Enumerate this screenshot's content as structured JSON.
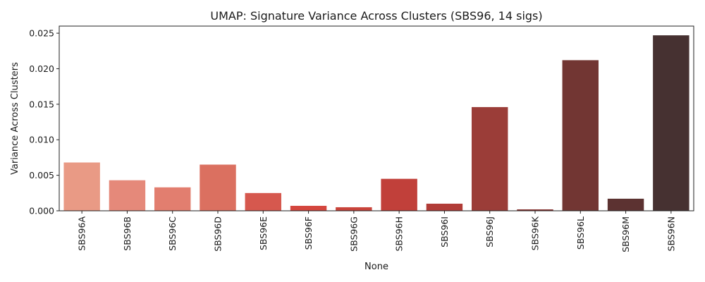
{
  "chart_data": {
    "type": "bar",
    "title": "UMAP: Signature Variance Across Clusters (SBS96, 14 sigs)",
    "xlabel": "None",
    "ylabel": "Variance Across Clusters",
    "ylim": [
      0,
      0.026
    ],
    "yticks": [
      "0.000",
      "0.005",
      "0.010",
      "0.015",
      "0.020",
      "0.025"
    ],
    "grid": false,
    "legend": "none",
    "categories": [
      "SBS96A",
      "SBS96B",
      "SBS96C",
      "SBS96D",
      "SBS96E",
      "SBS96F",
      "SBS96G",
      "SBS96H",
      "SBS96I",
      "SBS96J",
      "SBS96K",
      "SBS96L",
      "SBS96M",
      "SBS96N"
    ],
    "values": [
      0.0068,
      0.0043,
      0.0033,
      0.0065,
      0.0025,
      0.0007,
      0.0005,
      0.0045,
      0.001,
      0.0146,
      0.0002,
      0.0212,
      0.0017,
      0.0247
    ],
    "colors": [
      "#e99a85",
      "#e5897a",
      "#e27e6f",
      "#db7060",
      "#d6584e",
      "#d4463e",
      "#c9443b",
      "#c1403a",
      "#b13c37",
      "#9b3d38",
      "#8a3634",
      "#723633",
      "#5c3231",
      "#463131"
    ]
  }
}
